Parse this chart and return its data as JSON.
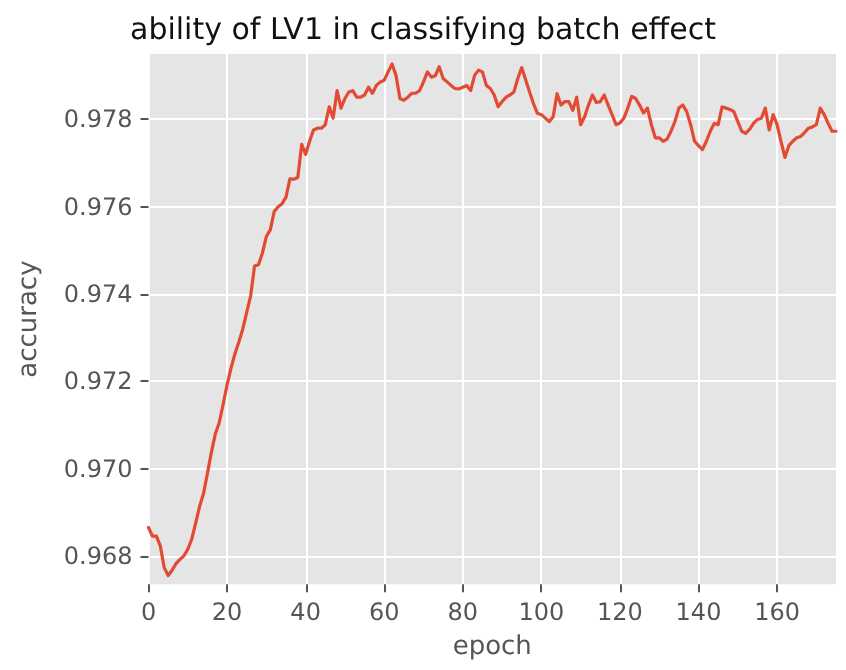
{
  "chart_data": {
    "type": "line",
    "title": "ability of LV1 in classifying batch effect",
    "xlabel": "epoch",
    "ylabel": "accuracy",
    "xlim": [
      0,
      175
    ],
    "xticks": [
      0,
      20,
      40,
      60,
      80,
      100,
      120,
      140,
      160
    ],
    "ylim": [
      0.96735,
      0.9795
    ],
    "yticks": [
      0.968,
      {
        "value": 0.97,
        "label": "0.970"
      },
      0.972,
      0.974,
      0.976,
      0.978
    ],
    "grid": true,
    "marker": "none",
    "line_style": "solid",
    "x": [
      0,
      1,
      2,
      3,
      4,
      5,
      6,
      7,
      8,
      9,
      10,
      11,
      12,
      13,
      14,
      15,
      16,
      17,
      18,
      19,
      20,
      21,
      22,
      23,
      24,
      25,
      26,
      27,
      28,
      29,
      30,
      31,
      32,
      33,
      34,
      35,
      36,
      37,
      38,
      39,
      40,
      41,
      42,
      43,
      44,
      45,
      46,
      47,
      48,
      49,
      50,
      51,
      52,
      53,
      54,
      55,
      56,
      57,
      58,
      59,
      60,
      61,
      62,
      63,
      64,
      65,
      66,
      67,
      68,
      69,
      70,
      71,
      72,
      73,
      74,
      75,
      76,
      77,
      78,
      79,
      80,
      81,
      82,
      83,
      84,
      85,
      86,
      87,
      88,
      89,
      90,
      91,
      92,
      93,
      94,
      95,
      96,
      97,
      98,
      99,
      100,
      101,
      102,
      103,
      104,
      105,
      106,
      107,
      108,
      109,
      110,
      111,
      112,
      113,
      114,
      115,
      116,
      117,
      118,
      119,
      120,
      121,
      122,
      123,
      124,
      125,
      126,
      127,
      128,
      129,
      130,
      131,
      132,
      133,
      134,
      135,
      136,
      137,
      138,
      139,
      140,
      141,
      142,
      143,
      144,
      145,
      146,
      147,
      148,
      149,
      150,
      151,
      152,
      153,
      154,
      155,
      156,
      157,
      158,
      159,
      160,
      161,
      162,
      163,
      164,
      165,
      166,
      167,
      168,
      169,
      170,
      171,
      172,
      173,
      174,
      175
    ],
    "series": [
      {
        "color": "#e24a33",
        "values": [
          0.96865,
          0.96845,
          0.96845,
          0.96823,
          0.96773,
          0.96755,
          0.96767,
          0.96782,
          0.96792,
          0.968,
          0.96815,
          0.96838,
          0.96875,
          0.96913,
          0.96943,
          0.96989,
          0.97037,
          0.97079,
          0.97105,
          0.97147,
          0.97192,
          0.9723,
          0.97263,
          0.9729,
          0.9732,
          0.97358,
          0.97396,
          0.97464,
          0.97467,
          0.97494,
          0.97532,
          0.97547,
          0.97589,
          0.976,
          0.97607,
          0.97622,
          0.97664,
          0.97663,
          0.97667,
          0.97743,
          0.9772,
          0.9775,
          0.97776,
          0.9778,
          0.9778,
          0.97788,
          0.97829,
          0.97803,
          0.97866,
          0.97826,
          0.97848,
          0.97863,
          0.97866,
          0.97851,
          0.97851,
          0.97856,
          0.97874,
          0.9786,
          0.97878,
          0.97886,
          0.9789,
          0.97909,
          0.97927,
          0.97901,
          0.97848,
          0.97844,
          0.97851,
          0.9786,
          0.9786,
          0.97866,
          0.97886,
          0.97909,
          0.97897,
          0.979,
          0.97921,
          0.97894,
          0.97886,
          0.97878,
          0.97871,
          0.9787,
          0.97874,
          0.97878,
          0.97866,
          0.97901,
          0.97913,
          0.97909,
          0.97878,
          0.97871,
          0.97856,
          0.97829,
          0.97841,
          0.97851,
          0.97856,
          0.97863,
          0.97894,
          0.97919,
          0.97891,
          0.97863,
          0.97836,
          0.97814,
          0.97811,
          0.97803,
          0.97795,
          0.97806,
          0.97859,
          0.97833,
          0.97841,
          0.97841,
          0.97821,
          0.97851,
          0.97788,
          0.97806,
          0.97833,
          0.97856,
          0.97839,
          0.97841,
          0.97856,
          0.97833,
          0.97811,
          0.97788,
          0.97792,
          0.97803,
          0.97826,
          0.97853,
          0.97848,
          0.97833,
          0.97815,
          0.97826,
          0.97788,
          0.97758,
          0.97758,
          0.9775,
          0.97755,
          0.97773,
          0.97795,
          0.97826,
          0.97833,
          0.97818,
          0.97788,
          0.9775,
          0.9774,
          0.97731,
          0.9775,
          0.97773,
          0.97791,
          0.97788,
          0.97829,
          0.97826,
          0.97823,
          0.97818,
          0.97795,
          0.97773,
          0.97768,
          0.97777,
          0.97791,
          0.978,
          0.97803,
          0.97826,
          0.97776,
          0.97811,
          0.97788,
          0.9775,
          0.97713,
          0.9774,
          0.9775,
          0.97758,
          0.97761,
          0.9777,
          0.9778,
          0.97783,
          0.97788,
          0.97826,
          0.97811,
          0.97791,
          0.97773,
          0.97773
        ]
      }
    ]
  }
}
